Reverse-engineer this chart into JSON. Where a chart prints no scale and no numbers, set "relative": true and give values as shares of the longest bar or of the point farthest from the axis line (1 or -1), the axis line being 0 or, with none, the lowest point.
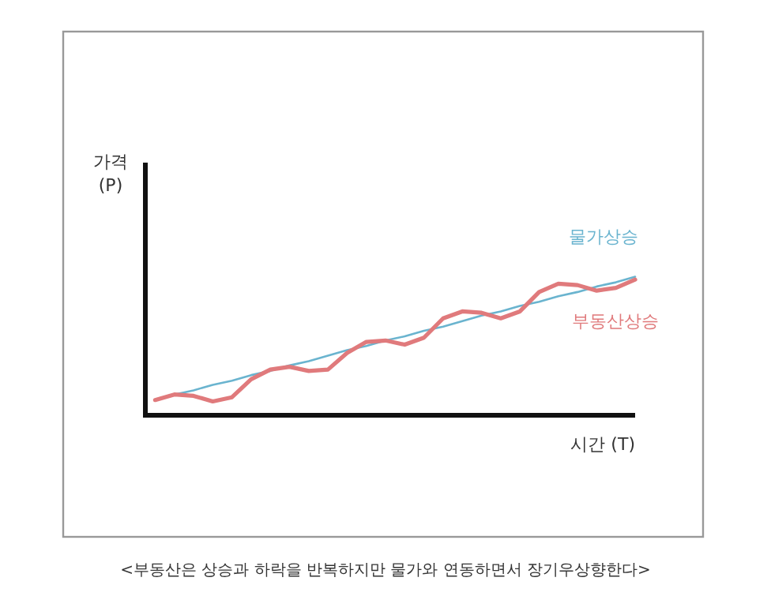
{
  "chart_data": {
    "type": "line",
    "relative": true,
    "xlabel": "시간 (T)",
    "ylabel": "가격\n(P)",
    "annotations": [
      "<부동산은 상승과 하락을 반복하지만 물가와 연동하면서 장기우상향한다>"
    ],
    "categories": [
      null,
      null,
      null,
      null,
      null,
      null,
      null,
      null,
      null,
      null,
      null,
      null,
      null,
      null,
      null,
      null,
      null,
      null,
      null,
      null,
      null,
      null,
      null,
      null,
      null,
      null
    ],
    "series": [
      {
        "name": "물가상승",
        "color": "#6ab4cf",
        "values": [
          0.11,
          0.15,
          0.18,
          0.22,
          0.25,
          0.29,
          0.32,
          0.36,
          0.39,
          0.43,
          0.47,
          0.5,
          0.54,
          0.57,
          0.61,
          0.64,
          0.68,
          0.72,
          0.75,
          0.79,
          0.82,
          0.86,
          0.89,
          0.93,
          0.96,
          1.0
        ]
      },
      {
        "name": "부동산상승",
        "color": "#e07a7c",
        "values": [
          0.11,
          0.15,
          0.14,
          0.1,
          0.13,
          0.26,
          0.33,
          0.35,
          0.32,
          0.33,
          0.45,
          0.53,
          0.54,
          0.51,
          0.56,
          0.7,
          0.75,
          0.74,
          0.7,
          0.75,
          0.89,
          0.95,
          0.94,
          0.9,
          0.92,
          0.98
        ]
      }
    ]
  }
}
